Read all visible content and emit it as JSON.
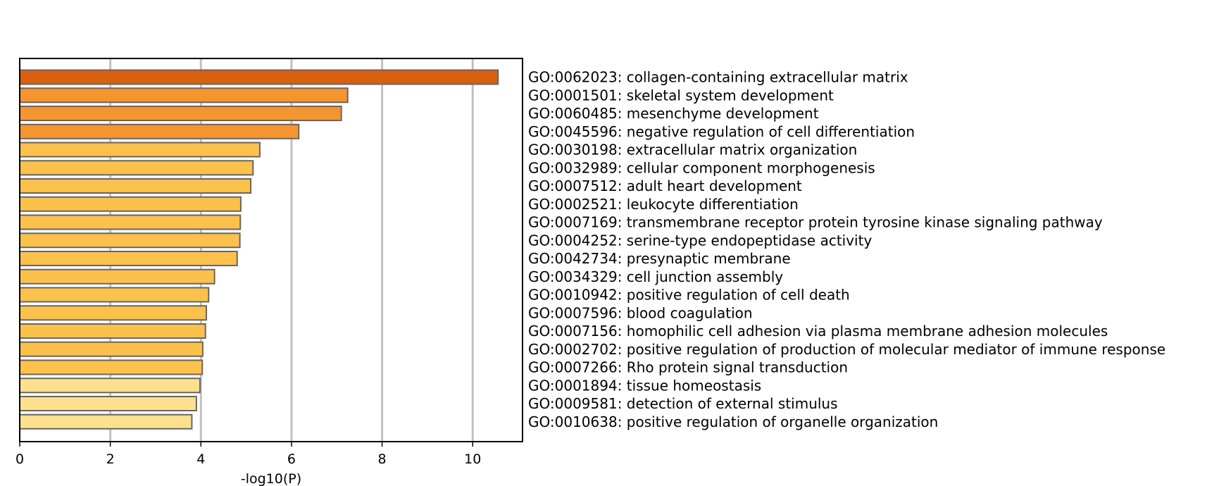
{
  "chart_data": {
    "type": "bar",
    "orientation": "horizontal",
    "xlabel": "-log10(P)",
    "ylabel": "",
    "title": "",
    "xlim": [
      0,
      11.1
    ],
    "xticks": [
      0,
      2,
      4,
      6,
      8,
      10
    ],
    "grid": "vertical lines at x ticks",
    "categories": [
      "GO:0062023: collagen-containing extracellular matrix",
      "GO:0001501: skeletal system development",
      "GO:0060485: mesenchyme development",
      "GO:0045596: negative regulation of cell differentiation",
      "GO:0030198: extracellular matrix organization",
      "GO:0032989: cellular component morphogenesis",
      "GO:0007512: adult heart development",
      "GO:0002521: leukocyte differentiation",
      "GO:0007169: transmembrane receptor protein tyrosine kinase signaling pathway",
      "GO:0004252: serine-type endopeptidase activity",
      "GO:0042734: presynaptic membrane",
      "GO:0034329: cell junction assembly",
      "GO:0010942: positive regulation of cell death",
      "GO:0007596: blood coagulation",
      "GO:0007156: homophilic cell adhesion via plasma membrane adhesion molecules",
      "GO:0002702: positive regulation of production of molecular mediator of immune response",
      "GO:0007266: Rho protein signal transduction",
      "GO:0001894: tissue homeostasis",
      "GO:0009581: detection of external stimulus",
      "GO:0010638: positive regulation of organelle organization"
    ],
    "values": [
      10.56,
      7.24,
      7.1,
      6.16,
      5.3,
      5.15,
      5.1,
      4.88,
      4.87,
      4.86,
      4.8,
      4.3,
      4.17,
      4.12,
      4.1,
      4.04,
      4.03,
      3.98,
      3.9,
      3.8
    ],
    "colors": [
      "#d9600f",
      "#f5952f",
      "#f5952f",
      "#f5952f",
      "#fcc14b",
      "#fcc14b",
      "#fcc14b",
      "#fcc14b",
      "#fcc14b",
      "#fcc14b",
      "#fcc14b",
      "#fcc14b",
      "#fcc14b",
      "#fcc14b",
      "#fcc14b",
      "#fcc14b",
      "#fcc14b",
      "#fde08d",
      "#fde08d",
      "#fde08d"
    ],
    "bar_edge_color": "#666666",
    "grid_color": "#c0c0c0"
  }
}
